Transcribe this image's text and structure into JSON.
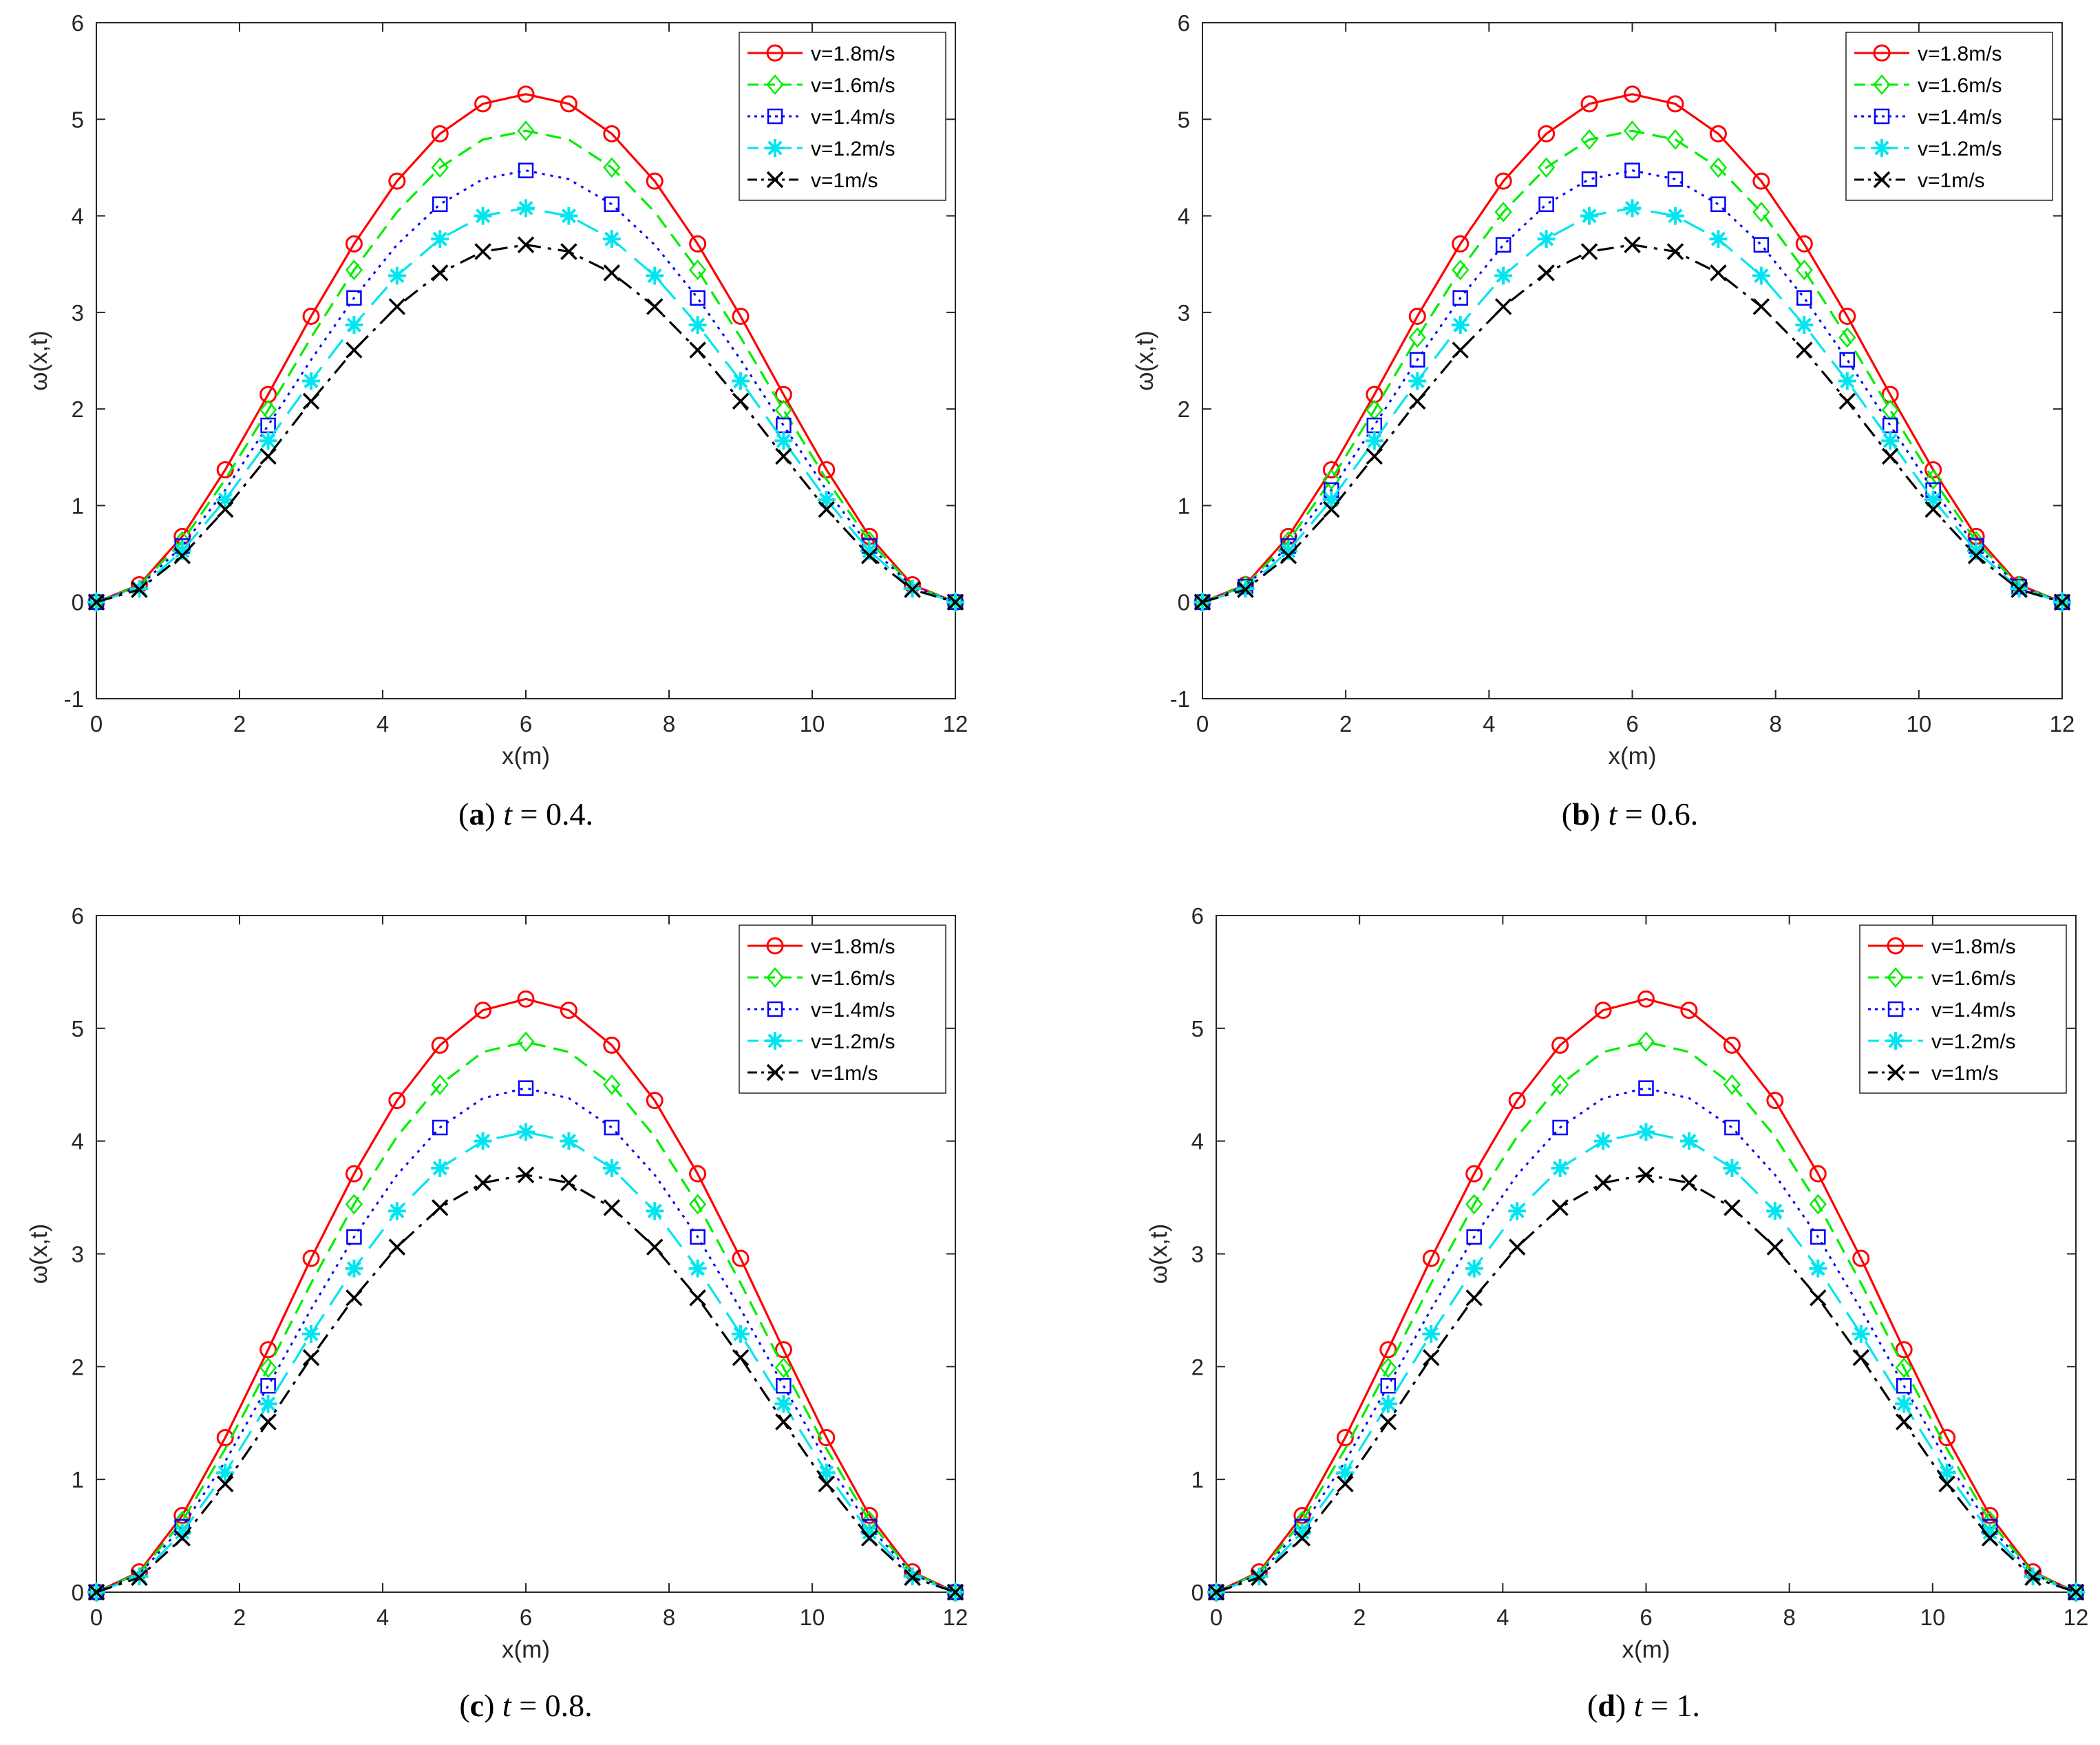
{
  "chart_data": [
    {
      "type": "line",
      "caption": {
        "letter": "a",
        "variable": "t",
        "value": "0.4."
      },
      "xlabel": "x(m)",
      "ylabel": "ω(x,t)",
      "xlim": [
        0,
        12
      ],
      "ylim": [
        -1,
        6
      ],
      "xticks": [
        "0",
        "2",
        "4",
        "6",
        "8",
        "10",
        "12"
      ],
      "yticks": [
        "-1",
        "0",
        "1",
        "2",
        "3",
        "4",
        "5",
        "6"
      ],
      "grid": false,
      "legend": "top-right",
      "x": [
        0,
        0.6,
        1.2,
        1.8,
        2.4,
        3.0,
        3.6,
        4.2,
        4.8,
        5.4,
        6.0,
        6.6,
        7.2,
        7.8,
        8.4,
        9.0,
        9.6,
        10.2,
        10.8,
        11.4,
        12
      ],
      "series": [
        {
          "name": "v=1.8m/s",
          "color": "#ff0000",
          "dash": "solid",
          "marker": "circle",
          "markers": "all",
          "values": [
            0,
            0.18,
            0.68,
            1.37,
            2.15,
            2.96,
            3.71,
            4.36,
            4.85,
            5.16,
            5.26,
            5.16,
            4.85,
            4.36,
            3.71,
            2.96,
            2.15,
            1.37,
            0.68,
            0.18,
            0
          ]
        },
        {
          "name": "v=1.6m/s",
          "color": "#00ee00",
          "dash": "dash",
          "marker": "diamond",
          "markers": "sparse",
          "values": [
            0,
            0.17,
            0.63,
            1.27,
            1.99,
            2.74,
            3.44,
            4.04,
            4.5,
            4.79,
            4.88,
            4.79,
            4.5,
            4.04,
            3.44,
            2.74,
            1.99,
            1.27,
            0.63,
            0.17,
            0
          ]
        },
        {
          "name": "v=1.4m/s",
          "color": "#0000ff",
          "dash": "dot",
          "marker": "square",
          "markers": "sparse",
          "values": [
            0,
            0.16,
            0.58,
            1.16,
            1.83,
            2.51,
            3.15,
            3.7,
            4.12,
            4.38,
            4.47,
            4.38,
            4.12,
            3.7,
            3.15,
            2.51,
            1.83,
            1.16,
            0.58,
            0.16,
            0
          ]
        },
        {
          "name": "v=1.2m/s",
          "color": "#00e5ee",
          "dash": "longdash",
          "marker": "star",
          "markers": "all",
          "values": [
            0,
            0.14,
            0.53,
            1.06,
            1.67,
            2.29,
            2.87,
            3.38,
            3.76,
            4.0,
            4.08,
            4.0,
            3.76,
            3.38,
            2.87,
            2.29,
            1.67,
            1.06,
            0.53,
            0.14,
            0
          ]
        },
        {
          "name": "v=1m/s",
          "color": "#000000",
          "dash": "dashdot",
          "marker": "x",
          "markers": "all",
          "values": [
            0,
            0.13,
            0.48,
            0.96,
            1.51,
            2.08,
            2.61,
            3.06,
            3.41,
            3.63,
            3.7,
            3.63,
            3.41,
            3.06,
            2.61,
            2.08,
            1.51,
            0.96,
            0.48,
            0.13,
            0
          ]
        }
      ]
    },
    {
      "type": "line",
      "caption": {
        "letter": "b",
        "variable": "t",
        "value": "0.6."
      },
      "xlabel": "x(m)",
      "ylabel": "ω(x,t)",
      "xlim": [
        0,
        12
      ],
      "ylim": [
        -1,
        6
      ],
      "xticks": [
        "0",
        "2",
        "4",
        "6",
        "8",
        "10",
        "12"
      ],
      "yticks": [
        "-1",
        "0",
        "1",
        "2",
        "3",
        "4",
        "5",
        "6"
      ],
      "grid": false,
      "legend": "top-right",
      "x": [
        0,
        0.6,
        1.2,
        1.8,
        2.4,
        3.0,
        3.6,
        4.2,
        4.8,
        5.4,
        6.0,
        6.6,
        7.2,
        7.8,
        8.4,
        9.0,
        9.6,
        10.2,
        10.8,
        11.4,
        12
      ],
      "series": [
        {
          "name": "v=1.8m/s",
          "color": "#ff0000",
          "dash": "solid",
          "marker": "circle",
          "markers": "all",
          "values": [
            0,
            0.18,
            0.68,
            1.37,
            2.15,
            2.96,
            3.71,
            4.36,
            4.85,
            5.16,
            5.26,
            5.16,
            4.85,
            4.36,
            3.71,
            2.96,
            2.15,
            1.37,
            0.68,
            0.18,
            0
          ]
        },
        {
          "name": "v=1.6m/s",
          "color": "#00ee00",
          "dash": "dash",
          "marker": "diamond",
          "markers": "all",
          "values": [
            0,
            0.17,
            0.63,
            1.27,
            1.99,
            2.74,
            3.44,
            4.04,
            4.5,
            4.79,
            4.88,
            4.79,
            4.5,
            4.04,
            3.44,
            2.74,
            1.99,
            1.27,
            0.63,
            0.17,
            0
          ]
        },
        {
          "name": "v=1.4m/s",
          "color": "#0000ff",
          "dash": "dot",
          "marker": "square",
          "markers": "all",
          "values": [
            0,
            0.16,
            0.58,
            1.16,
            1.83,
            2.51,
            3.15,
            3.7,
            4.12,
            4.38,
            4.47,
            4.38,
            4.12,
            3.7,
            3.15,
            2.51,
            1.83,
            1.16,
            0.58,
            0.16,
            0
          ]
        },
        {
          "name": "v=1.2m/s",
          "color": "#00e5ee",
          "dash": "longdash",
          "marker": "star",
          "markers": "all",
          "values": [
            0,
            0.14,
            0.53,
            1.06,
            1.67,
            2.29,
            2.87,
            3.38,
            3.76,
            4.0,
            4.08,
            4.0,
            3.76,
            3.38,
            2.87,
            2.29,
            1.67,
            1.06,
            0.53,
            0.14,
            0
          ]
        },
        {
          "name": "v=1m/s",
          "color": "#000000",
          "dash": "dashdot",
          "marker": "x",
          "markers": "all",
          "values": [
            0,
            0.13,
            0.48,
            0.96,
            1.51,
            2.08,
            2.61,
            3.06,
            3.41,
            3.63,
            3.7,
            3.63,
            3.41,
            3.06,
            2.61,
            2.08,
            1.51,
            0.96,
            0.48,
            0.13,
            0
          ]
        }
      ]
    },
    {
      "type": "line",
      "caption": {
        "letter": "c",
        "variable": "t",
        "value": "0.8."
      },
      "xlabel": "x(m)",
      "ylabel": "ω(x,t)",
      "xlim": [
        0,
        12
      ],
      "ylim": [
        0,
        6
      ],
      "xticks": [
        "0",
        "2",
        "4",
        "6",
        "8",
        "10",
        "12"
      ],
      "yticks": [
        "0",
        "1",
        "2",
        "3",
        "4",
        "5",
        "6"
      ],
      "grid": false,
      "legend": "top-right",
      "x": [
        0,
        0.6,
        1.2,
        1.8,
        2.4,
        3.0,
        3.6,
        4.2,
        4.8,
        5.4,
        6.0,
        6.6,
        7.2,
        7.8,
        8.4,
        9.0,
        9.6,
        10.2,
        10.8,
        11.4,
        12
      ],
      "series": [
        {
          "name": "v=1.8m/s",
          "color": "#ff0000",
          "dash": "solid",
          "marker": "circle",
          "markers": "all",
          "values": [
            0,
            0.18,
            0.68,
            1.37,
            2.15,
            2.96,
            3.71,
            4.36,
            4.85,
            5.16,
            5.26,
            5.16,
            4.85,
            4.36,
            3.71,
            2.96,
            2.15,
            1.37,
            0.68,
            0.18,
            0
          ]
        },
        {
          "name": "v=1.6m/s",
          "color": "#00ee00",
          "dash": "dash",
          "marker": "diamond",
          "markers": "sparse",
          "values": [
            0,
            0.17,
            0.63,
            1.27,
            1.99,
            2.74,
            3.44,
            4.04,
            4.5,
            4.79,
            4.88,
            4.79,
            4.5,
            4.04,
            3.44,
            2.74,
            1.99,
            1.27,
            0.63,
            0.17,
            0
          ]
        },
        {
          "name": "v=1.4m/s",
          "color": "#0000ff",
          "dash": "dot",
          "marker": "square",
          "markers": "sparse",
          "values": [
            0,
            0.16,
            0.58,
            1.16,
            1.83,
            2.51,
            3.15,
            3.7,
            4.12,
            4.38,
            4.47,
            4.38,
            4.12,
            3.7,
            3.15,
            2.51,
            1.83,
            1.16,
            0.58,
            0.16,
            0
          ]
        },
        {
          "name": "v=1.2m/s",
          "color": "#00e5ee",
          "dash": "longdash",
          "marker": "star",
          "markers": "all",
          "values": [
            0,
            0.14,
            0.53,
            1.06,
            1.67,
            2.29,
            2.87,
            3.38,
            3.76,
            4.0,
            4.08,
            4.0,
            3.76,
            3.38,
            2.87,
            2.29,
            1.67,
            1.06,
            0.53,
            0.14,
            0
          ]
        },
        {
          "name": "v=1m/s",
          "color": "#000000",
          "dash": "dashdot",
          "marker": "x",
          "markers": "all",
          "values": [
            0,
            0.13,
            0.48,
            0.96,
            1.51,
            2.08,
            2.61,
            3.06,
            3.41,
            3.63,
            3.7,
            3.63,
            3.41,
            3.06,
            2.61,
            2.08,
            1.51,
            0.96,
            0.48,
            0.13,
            0
          ]
        }
      ]
    },
    {
      "type": "line",
      "caption": {
        "letter": "d",
        "variable": "t",
        "value": "1."
      },
      "xlabel": "x(m)",
      "ylabel": "ω(x,t)",
      "xlim": [
        0,
        12
      ],
      "ylim": [
        0,
        6
      ],
      "xticks": [
        "0",
        "2",
        "4",
        "6",
        "8",
        "10",
        "12"
      ],
      "yticks": [
        "0",
        "1",
        "2",
        "3",
        "4",
        "5",
        "6"
      ],
      "grid": false,
      "legend": "top-right",
      "x": [
        0,
        0.6,
        1.2,
        1.8,
        2.4,
        3.0,
        3.6,
        4.2,
        4.8,
        5.4,
        6.0,
        6.6,
        7.2,
        7.8,
        8.4,
        9.0,
        9.6,
        10.2,
        10.8,
        11.4,
        12
      ],
      "series": [
        {
          "name": "v=1.8m/s",
          "color": "#ff0000",
          "dash": "solid",
          "marker": "circle",
          "markers": "all",
          "values": [
            0,
            0.18,
            0.68,
            1.37,
            2.15,
            2.96,
            3.71,
            4.36,
            4.85,
            5.16,
            5.26,
            5.16,
            4.85,
            4.36,
            3.71,
            2.96,
            2.15,
            1.37,
            0.68,
            0.18,
            0
          ]
        },
        {
          "name": "v=1.6m/s",
          "color": "#00ee00",
          "dash": "dash",
          "marker": "diamond",
          "markers": "sparse",
          "values": [
            0,
            0.17,
            0.63,
            1.27,
            1.99,
            2.74,
            3.44,
            4.04,
            4.5,
            4.79,
            4.88,
            4.79,
            4.5,
            4.04,
            3.44,
            2.74,
            1.99,
            1.27,
            0.63,
            0.17,
            0
          ]
        },
        {
          "name": "v=1.4m/s",
          "color": "#0000ff",
          "dash": "dot",
          "marker": "square",
          "markers": "sparse",
          "values": [
            0,
            0.16,
            0.58,
            1.16,
            1.83,
            2.51,
            3.15,
            3.7,
            4.12,
            4.38,
            4.47,
            4.38,
            4.12,
            3.7,
            3.15,
            2.51,
            1.83,
            1.16,
            0.58,
            0.16,
            0
          ]
        },
        {
          "name": "v=1.2m/s",
          "color": "#00e5ee",
          "dash": "longdash",
          "marker": "star",
          "markers": "all",
          "values": [
            0,
            0.14,
            0.53,
            1.06,
            1.67,
            2.29,
            2.87,
            3.38,
            3.76,
            4.0,
            4.08,
            4.0,
            3.76,
            3.38,
            2.87,
            2.29,
            1.67,
            1.06,
            0.53,
            0.14,
            0
          ]
        },
        {
          "name": "v=1m/s",
          "color": "#000000",
          "dash": "dashdot",
          "marker": "x",
          "markers": "all",
          "values": [
            0,
            0.13,
            0.48,
            0.96,
            1.51,
            2.08,
            2.61,
            3.06,
            3.41,
            3.63,
            3.7,
            3.63,
            3.41,
            3.06,
            2.61,
            2.08,
            1.51,
            0.96,
            0.48,
            0.13,
            0
          ]
        }
      ]
    }
  ]
}
